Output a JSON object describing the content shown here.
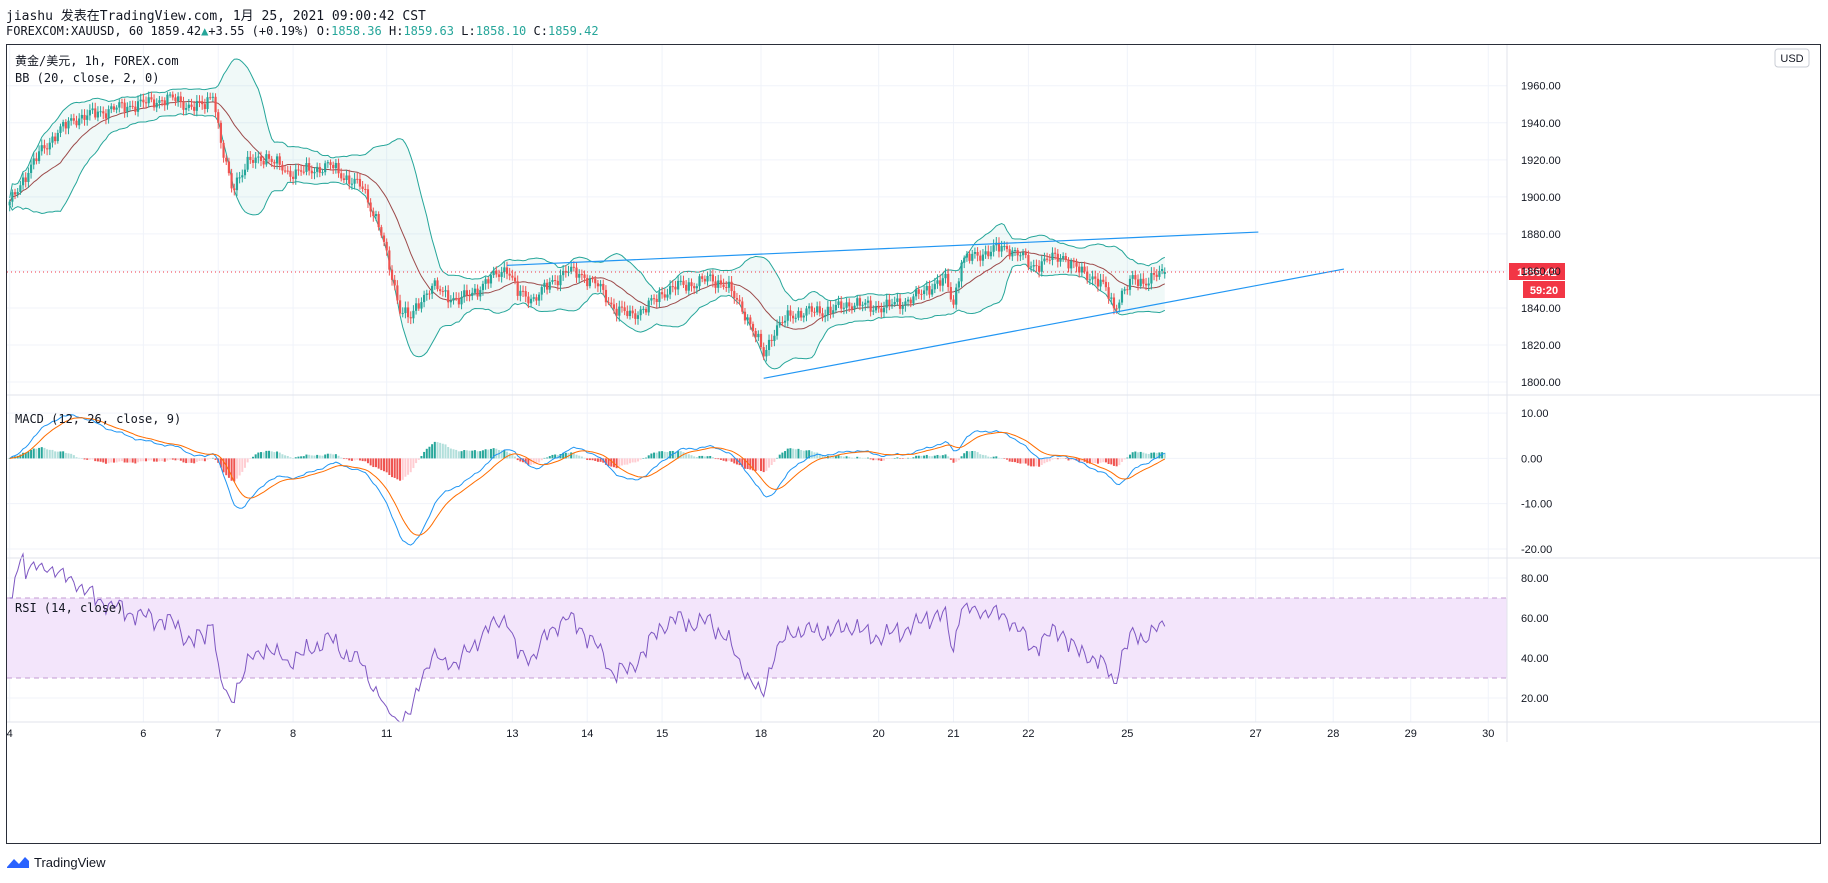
{
  "header": {
    "line1": "jiashu 发表在TradingView.com, 1月 25, 2021 09:00:42 CST",
    "line2_symbol": "FOREXCOM:XAUUSD, 60",
    "line2_price": "1859.42",
    "line2_change": "+3.55 (+0.19%)",
    "line2_o_label": "O:",
    "line2_o": "1858.36",
    "line2_h_label": "H:",
    "line2_h": "1859.63",
    "line2_l_label": "L:",
    "line2_l": "1858.10",
    "line2_c_label": "C:",
    "line2_c": "1859.42"
  },
  "main_pane": {
    "title": "黄金/美元, 1h, FOREX.com",
    "indicator": "BB (20, close, 2, 0)",
    "currency": "USD",
    "price_tag": "1859.42",
    "countdown_tag": "59:20"
  },
  "macd_pane": {
    "title": "MACD (12, 26, close, 9)"
  },
  "rsi_pane": {
    "title": "RSI (14, close)"
  },
  "footer": {
    "brand": "TradingView"
  },
  "colors": {
    "up": "#26a69a",
    "down": "#ef5350",
    "bb_band": "#26a69a",
    "bb_basis": "#9c4a4a",
    "trendline": "#2196f3",
    "macd": "#2196f3",
    "signal": "#ff6d00",
    "rsi": "#7e57c2",
    "rsi_band": "#f3e5fb",
    "price_tag": "#f23645"
  },
  "chart_data": [
    {
      "type": "candlestick",
      "pane": "price",
      "ylim": [
        1793,
        1982
      ],
      "yticks": [
        "1960.00",
        "1940.00",
        "1920.00",
        "1900.00",
        "1880.00",
        "1860.00",
        "1840.00",
        "1820.00",
        "1800.00"
      ],
      "ytick_values": [
        1960,
        1940,
        1920,
        1900,
        1880,
        1860,
        1840,
        1820,
        1800
      ],
      "x_ticks": [
        "4",
        "6",
        "7",
        "8",
        "11",
        "13",
        "14",
        "15",
        "18",
        "20",
        "21",
        "22",
        "25",
        "27",
        "28",
        "29",
        "30"
      ],
      "x_tick_index": [
        0,
        50,
        78,
        106,
        141,
        188,
        216,
        244,
        281,
        325,
        353,
        381,
        418,
        466,
        495,
        524,
        553
      ],
      "x_range": [
        -1,
        560
      ],
      "anchors": [
        [
          0,
          1896
        ],
        [
          6,
          1912
        ],
        [
          12,
          1925
        ],
        [
          18,
          1935
        ],
        [
          24,
          1942
        ],
        [
          32,
          1945
        ],
        [
          40,
          1948
        ],
        [
          48,
          1950
        ],
        [
          55,
          1952
        ],
        [
          62,
          1953
        ],
        [
          68,
          1948
        ],
        [
          73,
          1950
        ],
        [
          76,
          1957
        ],
        [
          79,
          1928
        ],
        [
          83,
          1905
        ],
        [
          89,
          1918
        ],
        [
          96,
          1922
        ],
        [
          104,
          1913
        ],
        [
          112,
          1914
        ],
        [
          120,
          1917
        ],
        [
          126,
          1910
        ],
        [
          132,
          1905
        ],
        [
          138,
          1885
        ],
        [
          142,
          1862
        ],
        [
          146,
          1840
        ],
        [
          150,
          1834
        ],
        [
          154,
          1845
        ],
        [
          158,
          1852
        ],
        [
          162,
          1848
        ],
        [
          168,
          1844
        ],
        [
          174,
          1849
        ],
        [
          180,
          1856
        ],
        [
          186,
          1862
        ],
        [
          190,
          1848
        ],
        [
          196,
          1845
        ],
        [
          202,
          1853
        ],
        [
          208,
          1860
        ],
        [
          214,
          1858
        ],
        [
          220,
          1852
        ],
        [
          226,
          1840
        ],
        [
          232,
          1836
        ],
        [
          238,
          1840
        ],
        [
          244,
          1848
        ],
        [
          250,
          1852
        ],
        [
          256,
          1853
        ],
        [
          262,
          1856
        ],
        [
          268,
          1852
        ],
        [
          274,
          1840
        ],
        [
          278,
          1828
        ],
        [
          282,
          1815
        ],
        [
          286,
          1828
        ],
        [
          292,
          1836
        ],
        [
          298,
          1838
        ],
        [
          304,
          1838
        ],
        [
          310,
          1840
        ],
        [
          316,
          1843
        ],
        [
          322,
          1840
        ],
        [
          328,
          1841
        ],
        [
          334,
          1843
        ],
        [
          340,
          1847
        ],
        [
          346,
          1853
        ],
        [
          350,
          1855
        ],
        [
          353,
          1842
        ],
        [
          356,
          1866
        ],
        [
          362,
          1868
        ],
        [
          368,
          1872
        ],
        [
          374,
          1872
        ],
        [
          378,
          1869
        ],
        [
          382,
          1862
        ],
        [
          388,
          1866
        ],
        [
          394,
          1868
        ],
        [
          400,
          1860
        ],
        [
          406,
          1856
        ],
        [
          410,
          1850
        ],
        [
          413,
          1840
        ],
        [
          416,
          1848
        ],
        [
          420,
          1855
        ],
        [
          424,
          1854
        ],
        [
          428,
          1857
        ],
        [
          432,
          1859
        ]
      ],
      "ohlc_last": {
        "open": 1858.36,
        "high": 1859.63,
        "low": 1858.1,
        "close": 1859.42
      },
      "last_price": 1859.42,
      "bollinger": {
        "period": 20,
        "mult": 2
      },
      "trendlines": [
        {
          "from": [
            186,
            1863
          ],
          "to": [
            467,
            1881
          ]
        },
        {
          "from": [
            282,
            1802
          ],
          "to": [
            499,
            1861
          ]
        }
      ]
    },
    {
      "type": "macd",
      "pane": "macd",
      "ylim": [
        -22,
        14
      ],
      "yticks": [
        "10.00",
        "0.00",
        "-10.00",
        "-20.00"
      ],
      "ytick_values": [
        10,
        0,
        -10,
        -20
      ],
      "params": {
        "fast": 12,
        "slow": 26,
        "signal": 9
      }
    },
    {
      "type": "line",
      "pane": "rsi",
      "ylim": [
        8,
        90
      ],
      "yticks": [
        "80.00",
        "60.00",
        "40.00",
        "20.00"
      ],
      "ytick_values": [
        80,
        60,
        40,
        20
      ],
      "band": [
        30,
        70
      ],
      "period": 14
    }
  ]
}
